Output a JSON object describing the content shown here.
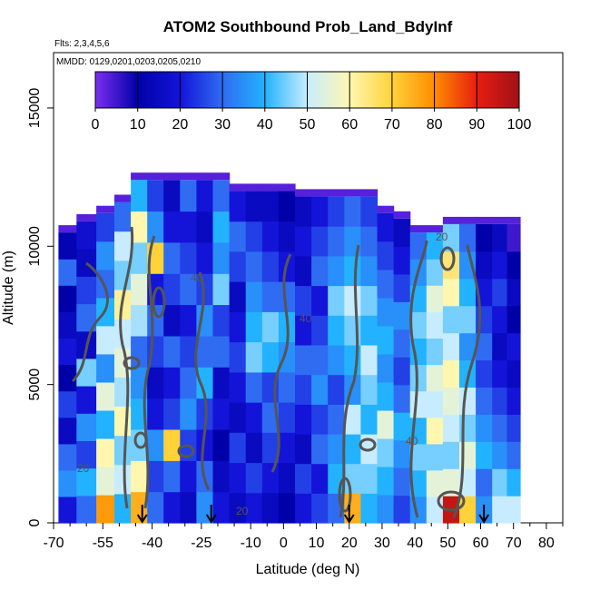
{
  "chart_data": {
    "type": "heatmap",
    "title": "ATOM2 Southbound Prob_Land_BdyInf",
    "flights_label": "Flts: 2,3,4,5,6",
    "dates_label": "MMDD: 0129,0201,0203,0205,0210",
    "xlabel": "Latitude (deg N)",
    "ylabel": "Altitude (m)",
    "xlim": [
      -70,
      85
    ],
    "ylim": [
      0,
      17000
    ],
    "x_ticks": [
      -70,
      -55,
      -40,
      -25,
      -10,
      0,
      10,
      20,
      30,
      40,
      50,
      60,
      70,
      80
    ],
    "y_ticks": [
      0,
      5000,
      10000,
      15000
    ],
    "colorbar": {
      "min": 0,
      "max": 100,
      "ticks": [
        0,
        10,
        20,
        30,
        40,
        50,
        60,
        70,
        80,
        90,
        100
      ],
      "colors": [
        "#7b2ff0",
        "#0000a8",
        "#1414d8",
        "#2f6cf2",
        "#23b2ff",
        "#c8ecff",
        "#fff7b0",
        "#ffd23a",
        "#ff8c00",
        "#e61e10",
        "#a01018"
      ]
    },
    "contour_labels": [
      "20",
      "40",
      "60"
    ],
    "arrow_latitudes": [
      -43,
      -22,
      20,
      61
    ],
    "heatmap_columns": [
      {
        "lat": -66,
        "ztop": 10500,
        "values": [
          20,
          35,
          30,
          15,
          25,
          10,
          20,
          15,
          10,
          30,
          12
        ]
      },
      {
        "lat": -60,
        "ztop": 10900,
        "values": [
          30,
          40,
          25,
          35,
          20,
          45,
          15,
          30,
          25,
          15,
          18
        ]
      },
      {
        "lat": -54,
        "ztop": 11200,
        "values": [
          78,
          55,
          60,
          40,
          55,
          35,
          50,
          40,
          30,
          35,
          25
        ]
      },
      {
        "lat": -49,
        "ztop": 11600,
        "values": [
          40,
          50,
          45,
          60,
          48,
          55,
          50,
          62,
          45,
          50,
          30
        ]
      },
      {
        "lat": -44,
        "ztop": 12400,
        "values": [
          75,
          60,
          45,
          40,
          35,
          30,
          48,
          55,
          45,
          60,
          40
        ]
      },
      {
        "lat": -39,
        "ztop": 12400,
        "values": [
          30,
          25,
          35,
          20,
          15,
          25,
          30,
          20,
          70,
          35,
          25
        ]
      },
      {
        "lat": -34,
        "ztop": 12400,
        "values": [
          20,
          30,
          70,
          25,
          20,
          30,
          15,
          25,
          30,
          20,
          15
        ]
      },
      {
        "lat": -29,
        "ztop": 12400,
        "values": [
          15,
          20,
          25,
          35,
          30,
          25,
          20,
          30,
          25,
          20,
          30
        ]
      },
      {
        "lat": -24,
        "ztop": 12400,
        "values": [
          35,
          30,
          20,
          25,
          40,
          30,
          35,
          25,
          20,
          15,
          20
        ]
      },
      {
        "lat": -19,
        "ztop": 12400,
        "values": [
          20,
          15,
          10,
          20,
          15,
          30,
          25,
          45,
          35,
          40,
          30
        ]
      },
      {
        "lat": -14,
        "ztop": 12000,
        "values": [
          15,
          20,
          25,
          15,
          20,
          25,
          20,
          15,
          25,
          30,
          20
        ]
      },
      {
        "lat": -9,
        "ztop": 12000,
        "values": [
          20,
          25,
          15,
          20,
          30,
          45,
          40,
          35,
          30,
          25,
          15
        ]
      },
      {
        "lat": -4,
        "ztop": 12000,
        "values": [
          15,
          20,
          25,
          30,
          25,
          40,
          45,
          30,
          25,
          20,
          15
        ]
      },
      {
        "lat": 1,
        "ztop": 12000,
        "values": [
          10,
          15,
          20,
          25,
          30,
          35,
          40,
          30,
          20,
          15,
          10
        ]
      },
      {
        "lat": 6,
        "ztop": 11800,
        "values": [
          20,
          25,
          15,
          20,
          25,
          30,
          20,
          25,
          15,
          20,
          15
        ]
      },
      {
        "lat": 11,
        "ztop": 11800,
        "values": [
          25,
          20,
          30,
          25,
          35,
          30,
          25,
          20,
          30,
          25,
          20
        ]
      },
      {
        "lat": 16,
        "ztop": 11800,
        "values": [
          30,
          40,
          35,
          30,
          25,
          35,
          40,
          45,
          35,
          30,
          25
        ]
      },
      {
        "lat": 21,
        "ztop": 11800,
        "values": [
          75,
          45,
          40,
          50,
          35,
          40,
          45,
          50,
          40,
          35,
          30
        ]
      },
      {
        "lat": 26,
        "ztop": 11800,
        "values": [
          40,
          45,
          50,
          40,
          45,
          50,
          40,
          45,
          35,
          30,
          25
        ]
      },
      {
        "lat": 31,
        "ztop": 11200,
        "values": [
          35,
          40,
          45,
          55,
          40,
          35,
          40,
          35,
          30,
          25,
          20
        ]
      },
      {
        "lat": 36,
        "ztop": 11000,
        "values": [
          25,
          30,
          35,
          40,
          30,
          25,
          30,
          35,
          25,
          20,
          15
        ]
      },
      {
        "lat": 41,
        "ztop": 10500,
        "values": [
          35,
          40,
          45,
          40,
          50,
          45,
          40,
          45,
          40,
          35,
          30
        ]
      },
      {
        "lat": 46,
        "ztop": 10500,
        "values": [
          50,
          55,
          45,
          60,
          50,
          55,
          45,
          50,
          55,
          45,
          40
        ]
      },
      {
        "lat": 51,
        "ztop": 10800,
        "values": [
          95,
          55,
          45,
          50,
          55,
          60,
          50,
          45,
          60,
          65,
          45
        ]
      },
      {
        "lat": 56,
        "ztop": 10800,
        "values": [
          70,
          50,
          55,
          45,
          50,
          40,
          35,
          45,
          40,
          35,
          30
        ]
      },
      {
        "lat": 61,
        "ztop": 10800,
        "values": [
          35,
          30,
          40,
          35,
          30,
          25,
          30,
          25,
          20,
          15,
          10
        ]
      },
      {
        "lat": 66,
        "ztop": 10800,
        "values": [
          50,
          45,
          35,
          30,
          25,
          20,
          15,
          20,
          25,
          20,
          15
        ]
      },
      {
        "lat": 70,
        "ztop": 10800,
        "values": [
          50,
          40,
          30,
          25,
          20,
          15,
          20,
          10,
          15,
          10,
          5
        ]
      }
    ]
  }
}
